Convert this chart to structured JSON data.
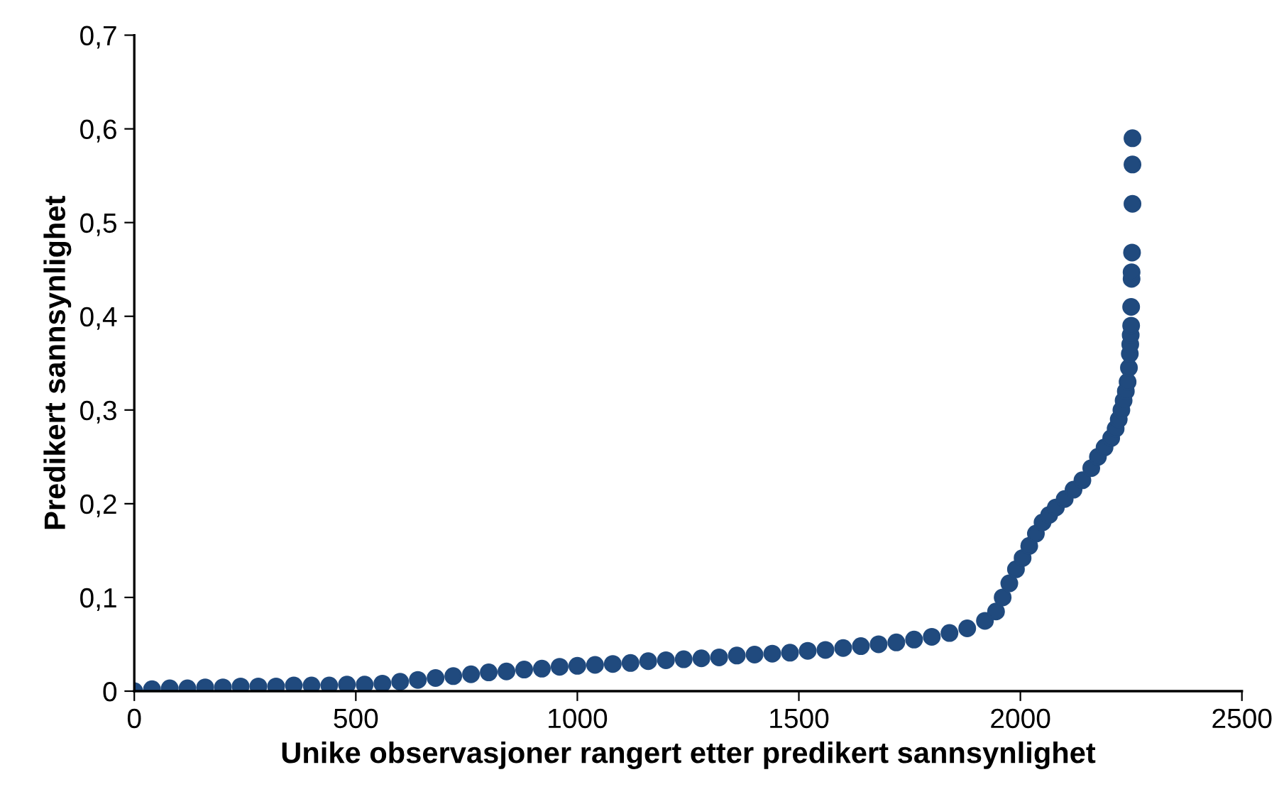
{
  "chart_data": {
    "type": "scatter",
    "xlabel": "Unike observasjoner rangert etter predikert sannsynlighet",
    "ylabel": "Predikert sannsynlighet",
    "xlim": [
      0,
      2500
    ],
    "xticks": [
      0,
      500,
      1000,
      1500,
      2000,
      2500
    ],
    "ylim": [
      0,
      0.7
    ],
    "yticks": [
      {
        "value": 0,
        "label": "0"
      },
      {
        "value": 0.1,
        "label": "0,1"
      },
      {
        "value": 0.2,
        "label": "0,2"
      },
      {
        "value": 0.3,
        "label": "0,3"
      },
      {
        "value": 0.4,
        "label": "0,4"
      },
      {
        "value": 0.5,
        "label": "0,5"
      },
      {
        "value": 0.6,
        "label": "0,6"
      },
      {
        "value": 0.7,
        "label": "0,7"
      }
    ],
    "grid": false,
    "marker": "circle",
    "legend": false,
    "series": [
      {
        "color": "#204a7e",
        "x": [
          0,
          40,
          80,
          120,
          160,
          200,
          240,
          280,
          320,
          360,
          400,
          440,
          480,
          520,
          560,
          600,
          640,
          680,
          720,
          760,
          800,
          840,
          880,
          920,
          960,
          1000,
          1040,
          1080,
          1120,
          1160,
          1200,
          1240,
          1280,
          1320,
          1360,
          1400,
          1440,
          1480,
          1520,
          1560,
          1600,
          1640,
          1680,
          1720,
          1760,
          1800,
          1840,
          1880,
          1920,
          1945,
          1960,
          1975,
          1990,
          2005,
          2020,
          2035,
          2050,
          2065,
          2080,
          2100,
          2120,
          2140,
          2160,
          2175,
          2190,
          2205,
          2215,
          2222,
          2228,
          2233,
          2238,
          2242,
          2245,
          2247,
          2248,
          2249,
          2250,
          2250,
          2251,
          2251,
          2252,
          2253,
          2253,
          2253
        ],
        "values": [
          0.0,
          0.002,
          0.003,
          0.003,
          0.004,
          0.004,
          0.005,
          0.005,
          0.005,
          0.006,
          0.006,
          0.006,
          0.007,
          0.007,
          0.008,
          0.01,
          0.012,
          0.014,
          0.016,
          0.018,
          0.02,
          0.021,
          0.023,
          0.024,
          0.026,
          0.027,
          0.028,
          0.029,
          0.03,
          0.032,
          0.033,
          0.034,
          0.035,
          0.036,
          0.038,
          0.039,
          0.04,
          0.041,
          0.043,
          0.044,
          0.046,
          0.048,
          0.05,
          0.052,
          0.055,
          0.058,
          0.062,
          0.067,
          0.075,
          0.085,
          0.1,
          0.115,
          0.13,
          0.142,
          0.155,
          0.168,
          0.18,
          0.188,
          0.196,
          0.205,
          0.215,
          0.225,
          0.238,
          0.25,
          0.26,
          0.27,
          0.28,
          0.29,
          0.3,
          0.31,
          0.32,
          0.33,
          0.345,
          0.36,
          0.37,
          0.38,
          0.39,
          0.41,
          0.44,
          0.447,
          0.468,
          0.52,
          0.562,
          0.59
        ]
      }
    ]
  }
}
